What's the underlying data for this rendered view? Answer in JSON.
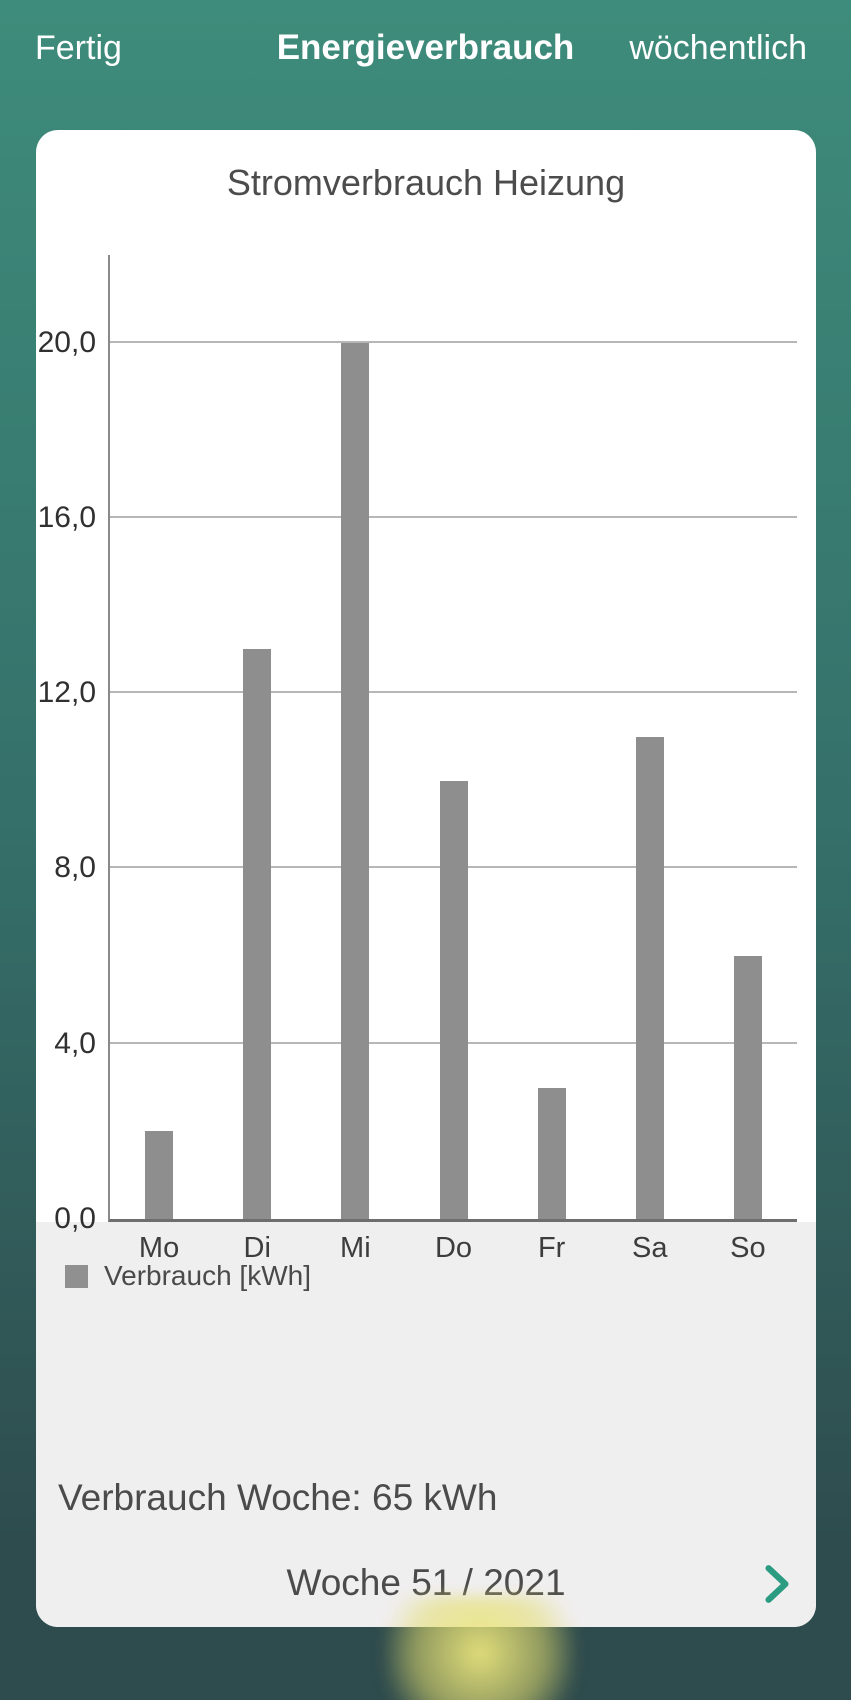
{
  "nav": {
    "done_label": "Fertig",
    "title": "Energieverbrauch",
    "interval_label": "wöchentlich"
  },
  "chart_data": {
    "type": "bar",
    "title": "Stromverbrauch Heizung",
    "categories": [
      "Mo",
      "Di",
      "Mi",
      "Do",
      "Fr",
      "Sa",
      "So"
    ],
    "values": [
      2,
      13,
      20,
      10,
      3,
      11,
      6
    ],
    "unit": "kWh",
    "legend": "Verbrauch [kWh]",
    "legend_position": "bottom-left",
    "y_ticks": [
      "0,0",
      "4,0",
      "8,0",
      "12,0",
      "16,0",
      "20,0"
    ],
    "y_tick_values": [
      0,
      4,
      8,
      12,
      16,
      20
    ],
    "ylim": [
      0,
      22
    ],
    "grid": true,
    "xlabel": "",
    "ylabel": ""
  },
  "summary": {
    "week_total": "Verbrauch Woche: 65 kWh"
  },
  "week_selector": {
    "label": "Woche 51 / 2021",
    "icon": "chevron-right"
  },
  "colors": {
    "bg_top": "#3E8C7B",
    "bg_mid": "#35706A",
    "bg_bottom": "#2E4B4D",
    "bar": "#8E8E8E",
    "legend_swatch": "#909090",
    "footer": "#F0EFF0",
    "accent": "#2B9C82"
  }
}
